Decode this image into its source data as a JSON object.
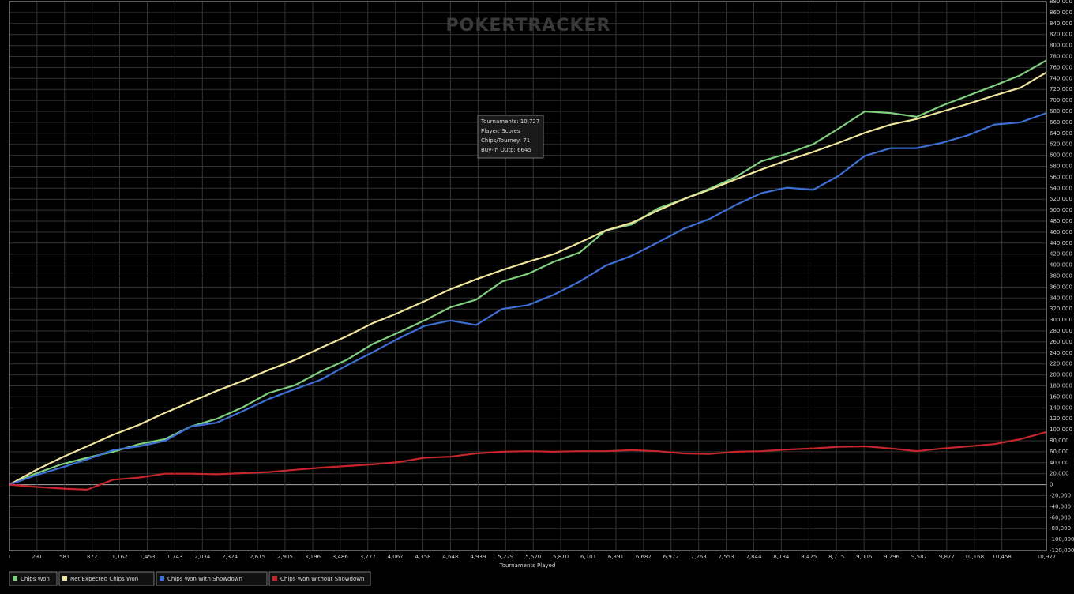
{
  "chart_data": {
    "type": "line",
    "watermark": "POKERTRACKER",
    "x_label": "Tournaments Played",
    "tooltip": [
      "Tournaments: 10,727",
      "Player: Scores",
      "Chips/Tourney: 71",
      "Buy-in Outp: 6645"
    ],
    "x": [
      1,
      274,
      547,
      820,
      1094,
      1367,
      1640,
      1913,
      2186,
      2459,
      2733,
      3006,
      3279,
      3552,
      3825,
      4098,
      4371,
      4645,
      4918,
      5191,
      5464,
      5737,
      6010,
      6283,
      6557,
      6830,
      7103,
      7376,
      7649,
      7922,
      8196,
      8469,
      8742,
      9015,
      9288,
      9561,
      9835,
      10108,
      10381,
      10654,
      10927
    ],
    "series": [
      {
        "name": "Chips Won",
        "color": "#7fcf7f",
        "values": [
          0,
          20000,
          37000,
          49000,
          60000,
          74000,
          83000,
          106000,
          120000,
          141000,
          167000,
          181000,
          206000,
          227000,
          256000,
          277000,
          299000,
          323000,
          337000,
          370000,
          384000,
          406000,
          423000,
          463000,
          474000,
          503000,
          520000,
          539000,
          560000,
          589000,
          603000,
          620000,
          649000,
          680000,
          677000,
          670000,
          691000,
          709000,
          727000,
          746000,
          773000
        ]
      },
      {
        "name": "Net Expected Chips Won",
        "color": "#eee59c",
        "values": [
          0,
          26000,
          49000,
          70000,
          91000,
          109000,
          131000,
          151000,
          171000,
          189000,
          209000,
          227000,
          249000,
          270000,
          294000,
          313000,
          334000,
          356000,
          374000,
          391000,
          406000,
          420000,
          441000,
          463000,
          477000,
          499000,
          520000,
          537000,
          556000,
          574000,
          591000,
          606000,
          623000,
          641000,
          656000,
          666000,
          680000,
          694000,
          709000,
          723000,
          751000
        ]
      },
      {
        "name": "Chips Won With Showdown",
        "color": "#3d6fd4",
        "values": [
          0,
          17000,
          31000,
          46000,
          63000,
          70000,
          80000,
          106000,
          113000,
          134000,
          156000,
          174000,
          191000,
          217000,
          241000,
          266000,
          289000,
          299000,
          291000,
          320000,
          327000,
          346000,
          370000,
          399000,
          417000,
          441000,
          466000,
          484000,
          509000,
          531000,
          541000,
          537000,
          563000,
          599000,
          613000,
          613000,
          623000,
          637000,
          656000,
          660000,
          677000
        ]
      },
      {
        "name": "Chips Won Without Showdown",
        "color": "#c4262c",
        "values": [
          0,
          -4000,
          -7000,
          -9000,
          9000,
          13000,
          20000,
          20000,
          19000,
          21000,
          23000,
          27000,
          31000,
          34000,
          37000,
          41000,
          49000,
          51000,
          57000,
          60000,
          61000,
          60000,
          61000,
          61000,
          63000,
          61000,
          57000,
          56000,
          60000,
          61000,
          64000,
          66000,
          69000,
          70000,
          66000,
          61000,
          66000,
          70000,
          74000,
          83000,
          96000
        ]
      }
    ],
    "xlim": [
      1,
      10927
    ],
    "xticks": [
      1,
      291,
      581,
      872,
      {
        "value": 1162,
        "label": "1,162"
      },
      {
        "value": 1453,
        "label": "1,453"
      },
      {
        "value": 1743,
        "label": "1,743"
      },
      {
        "value": 2034,
        "label": "2,034"
      },
      {
        "value": 2324,
        "label": "2,324"
      },
      {
        "value": 2615,
        "label": "2,615"
      },
      {
        "value": 2905,
        "label": "2,905"
      },
      {
        "value": 3196,
        "label": "3,196"
      },
      {
        "value": 3486,
        "label": "3,486"
      },
      {
        "value": 3777,
        "label": "3,777"
      },
      {
        "value": 4067,
        "label": "4,067"
      },
      {
        "value": 4358,
        "label": "4,358"
      },
      {
        "value": 4648,
        "label": "4,648"
      },
      {
        "value": 4939,
        "label": "4,939"
      },
      {
        "value": 5229,
        "label": "5,229"
      },
      {
        "value": 5520,
        "label": "5,520"
      },
      {
        "value": 5810,
        "label": "5,810"
      },
      {
        "value": 6101,
        "label": "6,101"
      },
      {
        "value": 6391,
        "label": "6,391"
      },
      {
        "value": 6682,
        "label": "6,682"
      },
      {
        "value": 6972,
        "label": "6,972"
      },
      {
        "value": 7263,
        "label": "7,263"
      },
      {
        "value": 7553,
        "label": "7,553"
      },
      {
        "value": 7844,
        "label": "7,844"
      },
      {
        "value": 8134,
        "label": "8,134"
      },
      {
        "value": 8425,
        "label": "8,425"
      },
      {
        "value": 8715,
        "label": "8,715"
      },
      {
        "value": 9006,
        "label": "9,006"
      },
      {
        "value": 9296,
        "label": "9,296"
      },
      {
        "value": 9587,
        "label": "9,587"
      },
      {
        "value": 9877,
        "label": "9,877"
      },
      {
        "value": 10168,
        "label": "10,168"
      },
      {
        "value": 10458,
        "label": "10,458"
      },
      {
        "value": 10927,
        "label": "10,927"
      }
    ],
    "ylim": [
      -120000,
      880000
    ],
    "yticks": [
      {
        "value": -120000,
        "label": "-120,000"
      },
      {
        "value": -100000,
        "label": "-100,000"
      },
      {
        "value": -80000,
        "label": "-80,000"
      },
      {
        "value": -60000,
        "label": "-60,000"
      },
      {
        "value": -40000,
        "label": "-40,000"
      },
      {
        "value": -20000,
        "label": "-20,000"
      },
      0,
      {
        "value": 20000,
        "label": "20,000"
      },
      {
        "value": 40000,
        "label": "40,000"
      },
      {
        "value": 60000,
        "label": "60,000"
      },
      {
        "value": 80000,
        "label": "80,000"
      },
      {
        "value": 100000,
        "label": "100,000"
      },
      {
        "value": 120000,
        "label": "120,000"
      },
      {
        "value": 140000,
        "label": "140,000"
      },
      {
        "value": 160000,
        "label": "160,000"
      },
      {
        "value": 180000,
        "label": "180,000"
      },
      {
        "value": 200000,
        "label": "200,000"
      },
      {
        "value": 220000,
        "label": "220,000"
      },
      {
        "value": 240000,
        "label": "240,000"
      },
      {
        "value": 260000,
        "label": "260,000"
      },
      {
        "value": 280000,
        "label": "280,000"
      },
      {
        "value": 300000,
        "label": "300,000"
      },
      {
        "value": 320000,
        "label": "320,000"
      },
      {
        "value": 340000,
        "label": "340,000"
      },
      {
        "value": 360000,
        "label": "360,000"
      },
      {
        "value": 380000,
        "label": "380,000"
      },
      {
        "value": 400000,
        "label": "400,000"
      },
      {
        "value": 420000,
        "label": "420,000"
      },
      {
        "value": 440000,
        "label": "440,000"
      },
      {
        "value": 460000,
        "label": "460,000"
      },
      {
        "value": 480000,
        "label": "480,000"
      },
      {
        "value": 500000,
        "label": "500,000"
      },
      {
        "value": 520000,
        "label": "520,000"
      },
      {
        "value": 540000,
        "label": "540,000"
      },
      {
        "value": 560000,
        "label": "560,000"
      },
      {
        "value": 580000,
        "label": "580,000"
      },
      {
        "value": 600000,
        "label": "600,000"
      },
      {
        "value": 620000,
        "label": "620,000"
      },
      {
        "value": 640000,
        "label": "640,000"
      },
      {
        "value": 660000,
        "label": "660,000"
      },
      {
        "value": 680000,
        "label": "680,000"
      },
      {
        "value": 700000,
        "label": "700,000"
      },
      {
        "value": 720000,
        "label": "720,000"
      },
      {
        "value": 740000,
        "label": "740,000"
      },
      {
        "value": 760000,
        "label": "760,000"
      },
      {
        "value": 780000,
        "label": "780,000"
      },
      {
        "value": 800000,
        "label": "800,000"
      },
      {
        "value": 820000,
        "label": "820,000"
      },
      {
        "value": 840000,
        "label": "840,000"
      },
      {
        "value": 860000,
        "label": "860,000"
      },
      {
        "value": 880000,
        "label": "880,000"
      }
    ],
    "grid": true
  }
}
